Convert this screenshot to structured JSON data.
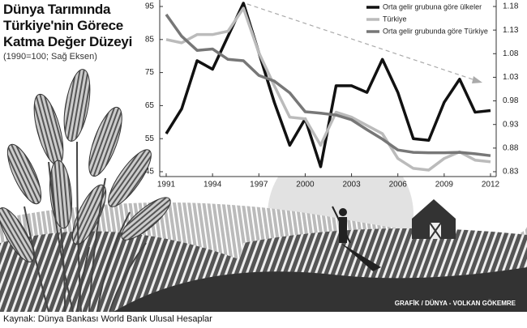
{
  "chart_data": {
    "type": "line",
    "title": "Dünya Tarımında Türkiye'nin Görece Katma Değer Düzeyi",
    "subtitle": "(1990=100; Sağ Eksen)",
    "source": "Kaynak: Dünya Bankası World Bank Ulusal Hesaplar",
    "credit": "GRAFİK / DÜNYA - VOLKAN GÖKEMRE",
    "x": [
      1991,
      1992,
      1993,
      1994,
      1995,
      1996,
      1997,
      1998,
      1999,
      2000,
      2001,
      2002,
      2003,
      2004,
      2005,
      2006,
      2007,
      2008,
      2009,
      2010,
      2011,
      2012
    ],
    "xlim": [
      1991,
      2012
    ],
    "xticks": [
      1991,
      1994,
      1997,
      2000,
      2003,
      2006,
      2009,
      2012
    ],
    "ylim": [
      45,
      95
    ],
    "yticks": [
      45,
      55,
      65,
      75,
      85,
      95
    ],
    "y2lim": [
      0.83,
      1.18
    ],
    "y2ticks": [
      0.83,
      0.88,
      0.93,
      0.98,
      1.03,
      1.08,
      1.13,
      1.18
    ],
    "series": [
      {
        "name": "Orta gelir grubuna göre ülkeler",
        "color": "#111111",
        "values": [
          56.5,
          64,
          78.6,
          76,
          86,
          96,
          81,
          66,
          53,
          61,
          46.5,
          71,
          71,
          69,
          79,
          69,
          55,
          54.5,
          66,
          73,
          63,
          63.5
        ]
      },
      {
        "name": "Türkiye",
        "color": "#bbbbbb",
        "values": [
          85,
          84,
          86.5,
          86.5,
          87.5,
          94.5,
          81,
          71,
          61.5,
          61,
          53,
          63,
          61.5,
          59,
          56.5,
          49,
          46,
          45.5,
          49,
          51,
          48.5,
          48
        ]
      },
      {
        "name": "Orta gelir grubunda göre Türkiye",
        "color": "#777777",
        "axis": "y2",
        "values": [
          1.163,
          1.117,
          1.087,
          1.09,
          1.068,
          1.065,
          1.034,
          1.022,
          0.997,
          0.957,
          0.954,
          0.95,
          0.94,
          0.919,
          0.899,
          0.876,
          0.871,
          0.87,
          0.87,
          0.871,
          0.868,
          0.864
        ]
      }
    ]
  }
}
